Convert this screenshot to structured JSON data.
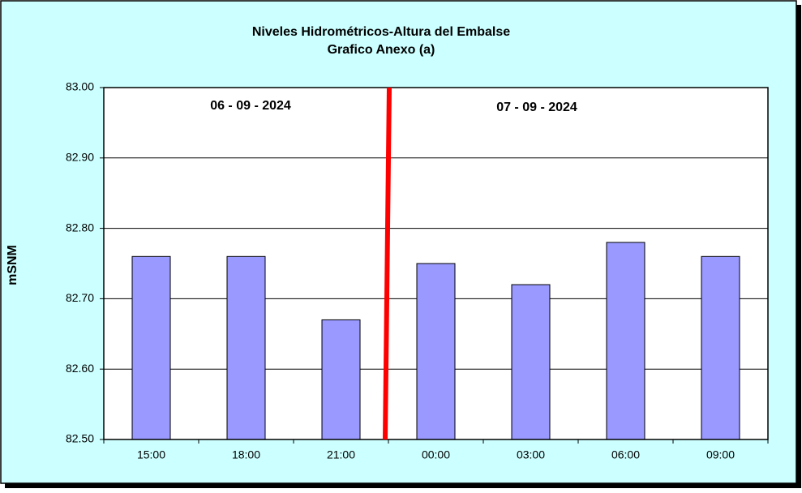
{
  "chart_data": {
    "type": "bar",
    "title": "Niveles Hidrométricos-Altura del Embalse",
    "subtitle": "Grafico Anexo (a)",
    "y_label": "mSNM",
    "annotations": [
      "06 - 09 - 2024",
      "07 - 09 - 2024"
    ],
    "categories": [
      "15:00",
      "18:00",
      "21:00",
      "00:00",
      "03:00",
      "06:00",
      "09:00"
    ],
    "values": [
      82.76,
      82.76,
      82.67,
      82.75,
      82.72,
      82.78,
      82.76
    ],
    "color": "#9999ff",
    "ylim": [
      82.5,
      83.0
    ],
    "yticks": [
      {
        "value": 82.5,
        "label": "82.50"
      },
      {
        "value": 82.6,
        "label": "82.60"
      },
      {
        "value": 82.7,
        "label": "82.70"
      },
      {
        "value": 82.8,
        "label": "82.80"
      },
      {
        "value": 82.9,
        "label": "82.90"
      },
      {
        "value": 83.0,
        "label": "83.00"
      }
    ],
    "grid": true
  }
}
